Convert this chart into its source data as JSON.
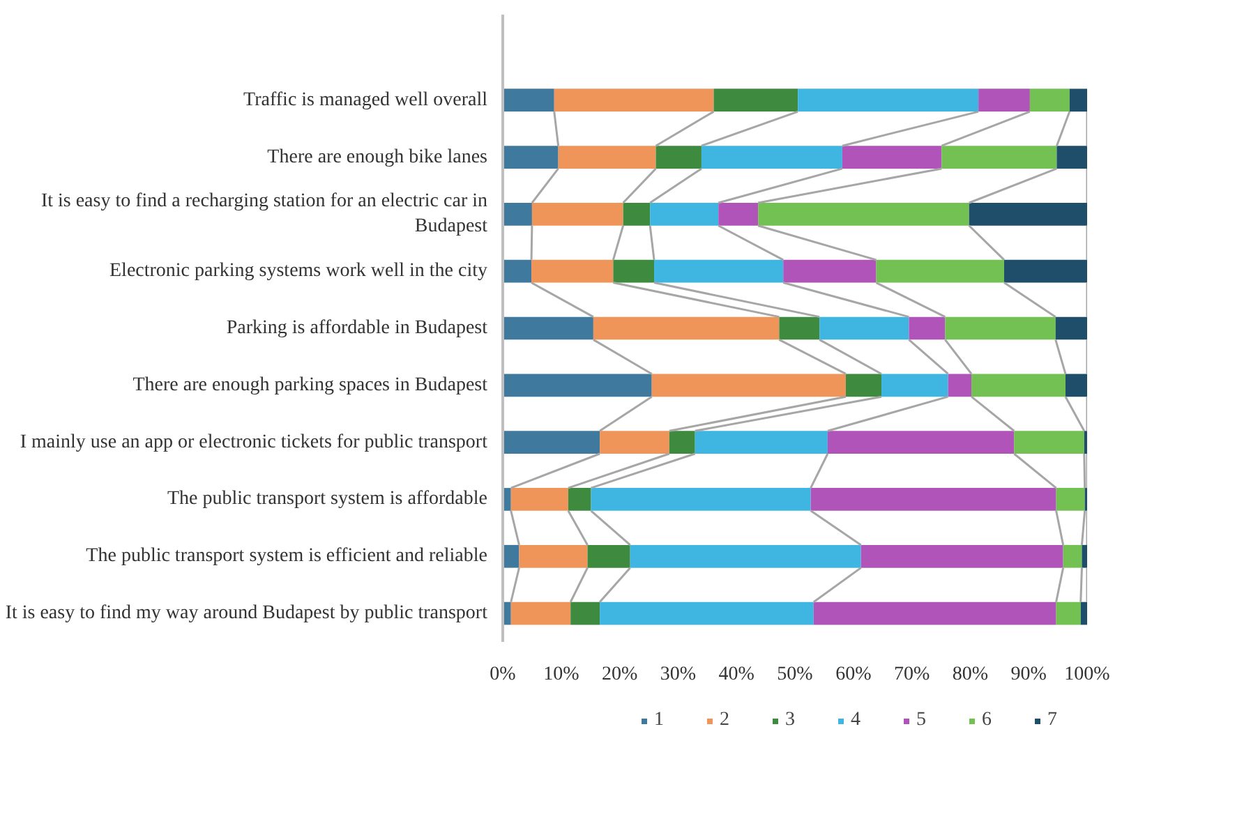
{
  "chart_data": {
    "type": "bar",
    "orientation": "horizontal",
    "stacked": true,
    "categories": [
      "Traffic is managed well overall",
      "There are enough bike lanes",
      "It is easy to find a recharging station for an electric car in Budapest",
      "Electronic parking systems work well in the city",
      "Parking is affordable in Budapest",
      "There are enough parking spaces in Budapest",
      "I mainly use an app or electronic tickets for public transport",
      "The public transport system is affordable",
      "The public transport system is efficient and reliable",
      "It is easy to find my way around Budapest by public transport"
    ],
    "series": [
      {
        "name": "1",
        "color": "#3f7a9e",
        "values": [
          8.8,
          9.5,
          5.0,
          4.9,
          15.5,
          25.5,
          16.6,
          1.4,
          2.8,
          1.4
        ]
      },
      {
        "name": "2",
        "color": "#f0955a",
        "values": [
          27.3,
          16.7,
          15.6,
          14.0,
          31.8,
          33.2,
          11.9,
          9.8,
          11.7,
          10.2
        ]
      },
      {
        "name": "3",
        "color": "#3e8a3e",
        "values": [
          14.4,
          7.8,
          4.6,
          7.0,
          6.9,
          6.1,
          4.4,
          3.9,
          7.3,
          5.0
        ]
      },
      {
        "name": "4",
        "color": "#3fb5e2",
        "values": [
          30.9,
          24.1,
          11.7,
          22.1,
          15.3,
          11.4,
          22.7,
          37.6,
          39.5,
          36.6
        ]
      },
      {
        "name": "5",
        "color": "#b154b9",
        "values": [
          8.8,
          17.0,
          6.8,
          15.9,
          6.2,
          4.0,
          31.9,
          42.0,
          34.6,
          41.5
        ]
      },
      {
        "name": "6",
        "color": "#72c152",
        "values": [
          6.8,
          19.7,
          36.1,
          21.9,
          18.9,
          16.1,
          12.0,
          4.9,
          3.2,
          4.2
        ]
      },
      {
        "name": "7",
        "color": "#1f4e6b",
        "values": [
          3.0,
          5.2,
          20.2,
          14.2,
          5.4,
          3.7,
          0.5,
          0.4,
          0.9,
          1.1
        ]
      }
    ],
    "xlim": [
      0,
      100
    ],
    "xticks": [
      {
        "value": 0,
        "label": "0%"
      },
      {
        "value": 10,
        "label": "10%"
      },
      {
        "value": 20,
        "label": "20%"
      },
      {
        "value": 30,
        "label": "30%"
      },
      {
        "value": 40,
        "label": "40%"
      },
      {
        "value": 50,
        "label": "50%"
      },
      {
        "value": 60,
        "label": "60%"
      },
      {
        "value": 70,
        "label": "70%"
      },
      {
        "value": 80,
        "label": "80%"
      },
      {
        "value": 90,
        "label": "90%"
      },
      {
        "value": 100,
        "label": "100%"
      }
    ],
    "grid": false,
    "legend": "bottom"
  }
}
